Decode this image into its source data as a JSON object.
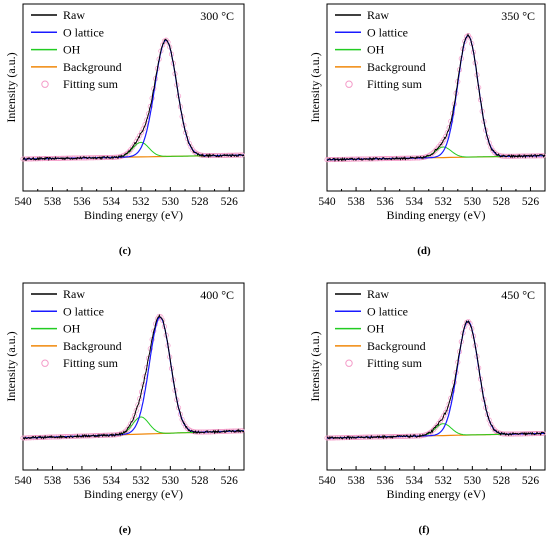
{
  "panels": [
    {
      "letter": "(c)",
      "temperature": "300 °C",
      "peak": 530.3,
      "amp": 0.88,
      "sigma": 0.75,
      "oh_center": 532.0,
      "oh_amp": 0.11,
      "bg_start": 0.015,
      "bg_end": 0.045
    },
    {
      "letter": "(d)",
      "temperature": "350 °C",
      "peak": 530.3,
      "amp": 0.92,
      "sigma": 0.7,
      "oh_center": 532.0,
      "oh_amp": 0.08,
      "bg_start": 0.01,
      "bg_end": 0.04
    },
    {
      "letter": "(e)",
      "temperature": "400 °C",
      "peak": 530.7,
      "amp": 0.88,
      "sigma": 0.72,
      "oh_center": 532.0,
      "oh_amp": 0.13,
      "bg_start": 0.015,
      "bg_end": 0.07
    },
    {
      "letter": "(f)",
      "temperature": "450 °C",
      "peak": 530.3,
      "amp": 0.86,
      "sigma": 0.72,
      "oh_center": 532.0,
      "oh_amp": 0.09,
      "bg_start": 0.015,
      "bg_end": 0.05
    }
  ],
  "chart_data": {
    "type": "line",
    "xlabel": "Binding energy (eV)",
    "ylabel": "Intensity (a.u.)",
    "xlim": [
      540,
      525
    ],
    "x_reversed": true,
    "x_ticks": [
      540,
      538,
      536,
      534,
      532,
      530,
      528,
      526
    ],
    "legend": [
      {
        "name": "Raw",
        "color": "#000000",
        "style": "line"
      },
      {
        "name": "O lattice",
        "color": "#1a1aff",
        "style": "line"
      },
      {
        "name": "OH",
        "color": "#22cc22",
        "style": "line"
      },
      {
        "name": "Background",
        "color": "#f0880a",
        "style": "line"
      },
      {
        "name": "Fitting sum",
        "color": "#f49ac8",
        "style": "marker-circle"
      }
    ],
    "legend_position": "top-left",
    "y_tick_labels": false,
    "grid": false
  }
}
